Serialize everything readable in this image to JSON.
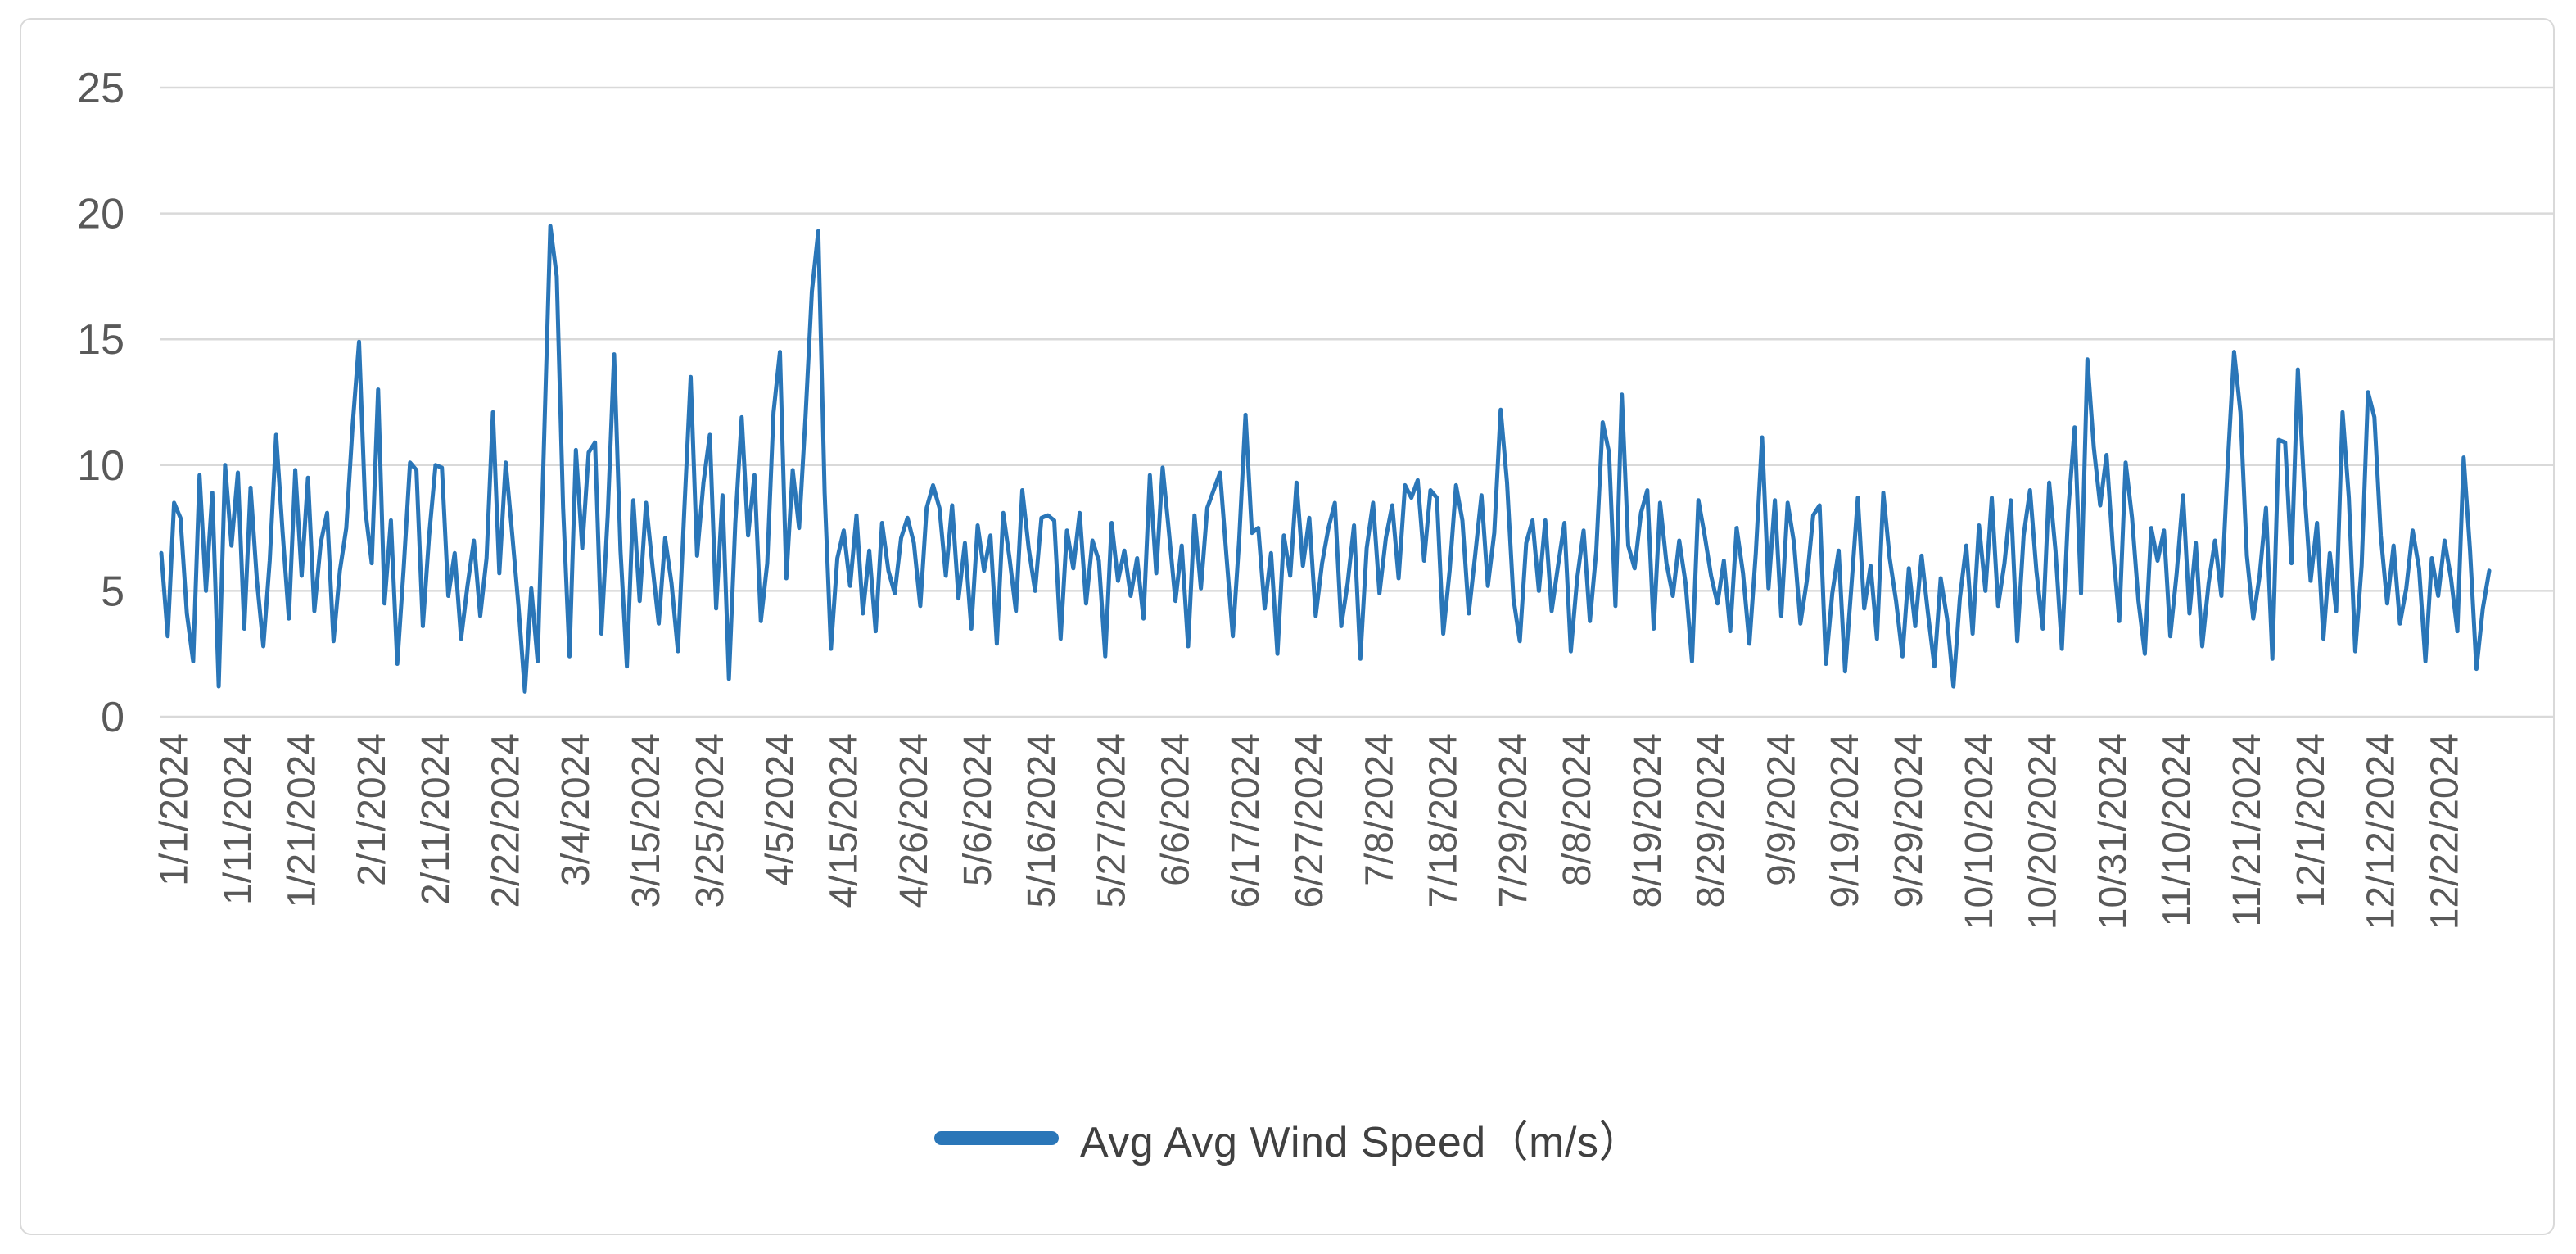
{
  "chart_data": {
    "type": "line",
    "title": "",
    "xlabel": "",
    "ylabel": "",
    "grid": "horizontal",
    "legend_position": "bottom-center",
    "ylim": [
      0,
      25
    ],
    "y_ticks": [
      25,
      20,
      15,
      10,
      5,
      0
    ],
    "x_tick_labels": [
      "1/1/2024",
      "1/11/2024",
      "1/21/2024",
      "2/1/2024",
      "2/11/2024",
      "2/22/2024",
      "3/4/2024",
      "3/15/2024",
      "3/25/2024",
      "4/5/2024",
      "4/15/2024",
      "4/26/2024",
      "5/6/2024",
      "5/16/2024",
      "5/27/2024",
      "6/6/2024",
      "6/17/2024",
      "6/27/2024",
      "7/8/2024",
      "7/18/2024",
      "7/29/2024",
      "8/8/2024",
      "8/19/2024",
      "8/29/2024",
      "9/9/2024",
      "9/19/2024",
      "9/29/2024",
      "10/10/2024",
      "10/20/2024",
      "10/31/2024",
      "11/10/2024",
      "11/21/2024",
      "12/1/2024",
      "12/12/2024",
      "12/22/2024"
    ],
    "series": [
      {
        "name": "Avg Avg Wind Speed（m/s）",
        "start_label": "1/1/2024",
        "values": [
          6.5,
          3.2,
          8.5,
          7.9,
          4.1,
          2.2,
          9.6,
          5.0,
          8.9,
          1.2,
          10.0,
          6.8,
          9.7,
          3.5,
          9.1,
          5.4,
          2.8,
          6.2,
          11.2,
          7.4,
          3.9,
          9.8,
          5.6,
          9.5,
          4.2,
          6.9,
          8.1,
          3.0,
          5.8,
          7.5,
          11.6,
          14.9,
          8.2,
          6.1,
          13.0,
          4.5,
          7.8,
          2.1,
          5.9,
          10.1,
          9.8,
          3.6,
          7.2,
          10.0,
          9.9,
          4.8,
          6.5,
          3.1,
          5.2,
          7.0,
          4.0,
          6.3,
          12.1,
          5.7,
          10.1,
          7.3,
          4.4,
          1.0,
          5.1,
          2.2,
          10.8,
          19.5,
          17.5,
          8.3,
          2.4,
          10.6,
          6.7,
          10.5,
          10.9,
          3.3,
          8.0,
          14.4,
          6.6,
          2.0,
          8.6,
          4.6,
          8.5,
          6.0,
          3.7,
          7.1,
          5.3,
          2.6,
          8.2,
          13.5,
          6.4,
          9.3,
          11.2,
          4.3,
          8.8,
          1.5,
          7.7,
          11.9,
          7.2,
          9.6,
          3.8,
          6.1,
          12.1,
          14.5,
          5.5,
          9.8,
          7.5,
          11.9,
          16.9,
          19.3,
          8.9,
          2.7,
          6.3,
          7.4,
          5.2,
          8.0,
          4.1,
          6.6,
          3.4,
          7.7,
          5.8,
          4.9,
          7.1,
          7.9,
          6.9,
          4.4,
          8.3,
          9.2,
          8.3,
          5.6,
          8.4,
          4.7,
          6.9,
          3.5,
          7.6,
          5.8,
          7.2,
          2.9,
          8.1,
          6.3,
          4.2,
          9.0,
          6.7,
          5.0,
          7.9,
          8.0,
          7.8,
          3.1,
          7.4,
          5.9,
          8.1,
          4.5,
          7.0,
          6.2,
          2.4,
          7.7,
          5.4,
          6.6,
          4.8,
          6.3,
          3.9,
          9.6,
          5.7,
          9.9,
          7.3,
          4.6,
          6.8,
          2.8,
          8.0,
          5.1,
          8.3,
          9.0,
          9.7,
          6.4,
          3.2,
          7.0,
          12.0,
          7.3,
          7.5,
          4.3,
          6.5,
          2.5,
          7.2,
          5.6,
          9.3,
          6.0,
          7.9,
          4.0,
          6.1,
          7.5,
          8.5,
          3.6,
          5.3,
          7.6,
          2.3,
          6.7,
          8.5,
          4.9,
          7.1,
          8.4,
          5.5,
          9.2,
          8.7,
          9.4,
          6.2,
          9.0,
          8.7,
          3.3,
          5.8,
          9.2,
          7.8,
          4.1,
          6.4,
          8.8,
          5.2,
          7.3,
          12.2,
          9.3,
          4.7,
          3.0,
          6.9,
          7.8,
          5.0,
          7.8,
          4.2,
          6.0,
          7.7,
          2.6,
          5.5,
          7.4,
          3.8,
          6.6,
          11.7,
          10.5,
          4.4,
          12.8,
          6.8,
          5.9,
          8.1,
          9.0,
          3.5,
          8.5,
          6.1,
          4.8,
          7.0,
          5.3,
          2.2,
          8.6,
          7.2,
          5.6,
          4.5,
          6.2,
          3.4,
          7.5,
          5.7,
          2.9,
          6.5,
          11.1,
          5.1,
          8.6,
          4.0,
          8.5,
          6.9,
          3.7,
          5.4,
          8.0,
          8.4,
          2.1,
          4.9,
          6.6,
          1.8,
          5.2,
          8.7,
          4.3,
          6.0,
          3.1,
          8.9,
          6.3,
          4.6,
          2.4,
          5.9,
          3.6,
          6.4,
          4.1,
          2.0,
          5.5,
          3.9,
          1.2,
          4.7,
          6.8,
          3.3,
          7.6,
          5.0,
          8.7,
          4.4,
          6.1,
          8.6,
          3.0,
          7.2,
          9.0,
          5.8,
          3.5,
          9.3,
          6.6,
          2.7,
          8.2,
          11.5,
          4.9,
          14.2,
          10.7,
          8.4,
          10.4,
          6.7,
          3.8,
          10.1,
          7.9,
          4.6,
          2.5,
          7.5,
          6.2,
          7.4,
          3.2,
          5.7,
          8.8,
          4.1,
          6.9,
          2.8,
          5.3,
          7.0,
          4.8,
          10.0,
          14.5,
          12.1,
          6.4,
          3.9,
          5.6,
          8.3,
          2.3,
          11.0,
          10.9,
          6.1,
          13.8,
          9.1,
          5.4,
          7.7,
          3.1,
          6.5,
          4.2,
          12.1,
          8.7,
          2.6,
          6.0,
          12.9,
          11.9,
          7.2,
          4.5,
          6.8,
          3.7,
          5.1,
          7.4,
          5.9,
          2.2,
          6.3,
          4.8,
          7.0,
          5.5,
          3.4,
          10.3,
          6.6,
          1.9,
          4.3,
          5.8
        ]
      }
    ],
    "colors": {
      "line": "#2A76B8",
      "grid": "#d9d9d9",
      "axis_text": "#595959",
      "legend_text": "#404040",
      "frame_border": "#d9d9d9"
    }
  }
}
